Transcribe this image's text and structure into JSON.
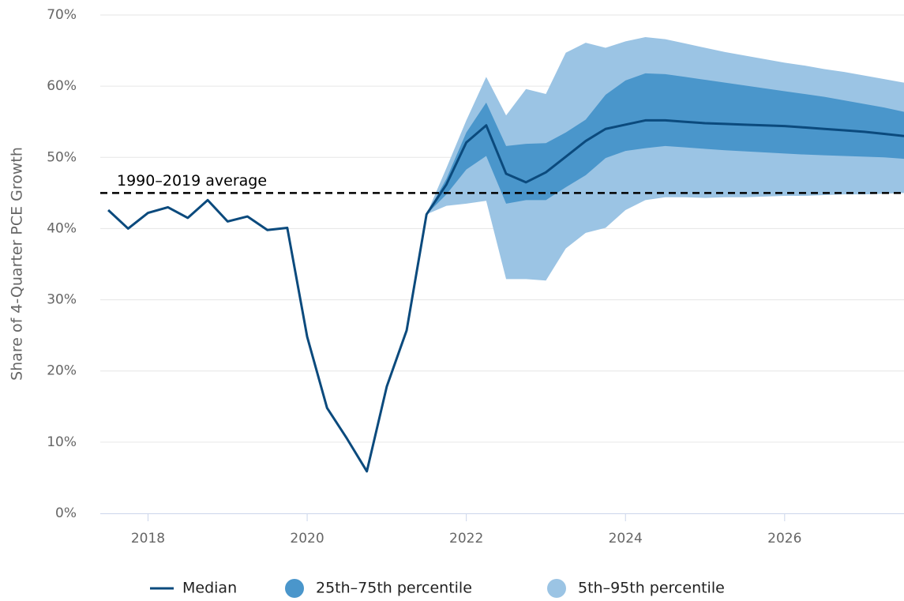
{
  "chart_data": {
    "type": "line",
    "y_label": "Share of 4-Quarter PCE Growth",
    "xlim": [
      2017.4,
      2027.5
    ],
    "xticks": [
      2018,
      2020,
      2022,
      2024,
      2026
    ],
    "ylim": [
      0,
      70
    ],
    "yticks": [
      {
        "value": 0,
        "label": "0%"
      },
      {
        "value": 10,
        "label": "10%"
      },
      {
        "value": 20,
        "label": "20%"
      },
      {
        "value": 30,
        "label": "30%"
      },
      {
        "value": 40,
        "label": "40%"
      },
      {
        "value": 50,
        "label": "50%"
      },
      {
        "value": 60,
        "label": "60%"
      },
      {
        "value": 70,
        "label": "70%"
      }
    ],
    "grid": true,
    "reference_line": {
      "value": 45,
      "label": "1990–2019 average"
    },
    "x": [
      2017.5,
      2017.75,
      2018,
      2018.25,
      2018.5,
      2018.75,
      2019,
      2019.25,
      2019.5,
      2019.75,
      2020,
      2020.25,
      2020.5,
      2020.75,
      2021,
      2021.25,
      2021.5,
      2021.75,
      2022,
      2022.25,
      2022.5,
      2022.75,
      2023,
      2023.25,
      2023.5,
      2023.75,
      2024,
      2024.25,
      2024.5,
      2024.75,
      2025,
      2025.25,
      2025.5,
      2025.75,
      2026,
      2026.25,
      2026.5,
      2026.75,
      2027,
      2027.25,
      2027.5
    ],
    "bands": [
      {
        "name": "5th–95th percentile",
        "color": "#9bc4e4",
        "upper": [
          null,
          null,
          null,
          null,
          null,
          null,
          null,
          null,
          null,
          null,
          null,
          null,
          null,
          null,
          null,
          null,
          42.0,
          48.5,
          55.2,
          61.3,
          55.9,
          59.6,
          58.9,
          64.7,
          66.1,
          65.4,
          66.3,
          66.9,
          66.6,
          66.0,
          65.4,
          64.8,
          64.3,
          63.8,
          63.3,
          62.9,
          62.4,
          62.0,
          61.5,
          61.0,
          60.5
        ],
        "lower": [
          null,
          null,
          null,
          null,
          null,
          null,
          null,
          null,
          null,
          null,
          null,
          null,
          null,
          null,
          null,
          null,
          42.0,
          43.2,
          43.5,
          43.9,
          32.9,
          32.9,
          32.7,
          37.2,
          39.4,
          40.1,
          42.6,
          44.0,
          44.4,
          44.4,
          44.3,
          44.4,
          44.4,
          44.5,
          44.6,
          44.6,
          44.7,
          44.8,
          44.8,
          44.9,
          45.0
        ]
      },
      {
        "name": "25th–75th percentile",
        "color": "#4a96cb",
        "upper": [
          null,
          null,
          null,
          null,
          null,
          null,
          null,
          null,
          null,
          null,
          null,
          null,
          null,
          null,
          null,
          null,
          42.0,
          47.0,
          53.5,
          57.7,
          51.6,
          51.9,
          52.0,
          53.5,
          55.3,
          58.8,
          60.8,
          61.8,
          61.7,
          61.3,
          60.9,
          60.5,
          60.1,
          59.7,
          59.3,
          58.9,
          58.5,
          58.0,
          57.5,
          57.0,
          56.4
        ],
        "lower": [
          null,
          null,
          null,
          null,
          null,
          null,
          null,
          null,
          null,
          null,
          null,
          null,
          null,
          null,
          null,
          null,
          42.0,
          44.8,
          48.3,
          50.2,
          43.5,
          44.0,
          44.0,
          45.8,
          47.5,
          49.9,
          50.9,
          51.3,
          51.6,
          51.4,
          51.2,
          51.0,
          50.85,
          50.7,
          50.55,
          50.4,
          50.3,
          50.2,
          50.1,
          50.0,
          49.8
        ]
      }
    ],
    "series": [
      {
        "name": "Median",
        "color": "#0b4a7d",
        "values": [
          42.6,
          40.0,
          42.2,
          43.0,
          41.5,
          44.0,
          41.0,
          41.7,
          39.8,
          40.1,
          24.8,
          14.8,
          10.5,
          5.9,
          17.8,
          25.7,
          42.0,
          46.2,
          52.1,
          54.5,
          47.7,
          46.5,
          47.9,
          50.1,
          52.3,
          54.0,
          54.6,
          55.2,
          55.2,
          55.0,
          54.8,
          54.7,
          54.6,
          54.5,
          54.4,
          54.2,
          54.0,
          53.8,
          53.6,
          53.3,
          53.0
        ]
      }
    ]
  }
}
